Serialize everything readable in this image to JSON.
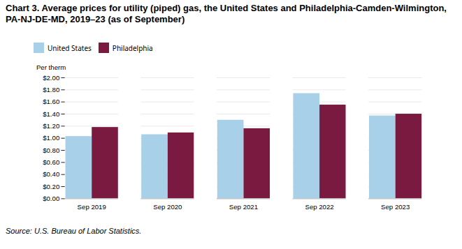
{
  "chart_data": {
    "type": "bar",
    "title": "Chart 3. Average prices for utility (piped) gas, the United States and Philadelphia-Camden-Wilmington, PA-NJ-DE-MD, 2019–23 (as of September)",
    "ylabel": "Per therm",
    "source": "Source: U.S. Bureau of Labor Statistics.",
    "categories": [
      "Sep 2019",
      "Sep 2020",
      "Sep 2021",
      "Sep 2022",
      "Sep 2023"
    ],
    "series": [
      {
        "name": "United States",
        "color": "#a8d0e8",
        "values": [
          1.03,
          1.06,
          1.3,
          1.74,
          1.37
        ]
      },
      {
        "name": "Philadelphia",
        "color": "#7b1a40",
        "values": [
          1.18,
          1.09,
          1.16,
          1.55,
          1.4
        ]
      }
    ],
    "ylim": [
      0,
      2.0
    ],
    "yticks": [
      {
        "value": 0.0,
        "label": "$0.00"
      },
      {
        "value": 0.2,
        "label": "$0.20"
      },
      {
        "value": 0.4,
        "label": "$0.40"
      },
      {
        "value": 0.6,
        "label": "$0.60"
      },
      {
        "value": 0.8,
        "label": "$0.80"
      },
      {
        "value": 1.0,
        "label": "$1.00"
      },
      {
        "value": 1.2,
        "label": "$1.20"
      },
      {
        "value": 1.4,
        "label": "$1.40"
      },
      {
        "value": 1.6,
        "label": "$1.60"
      },
      {
        "value": 1.8,
        "label": "$1.80"
      },
      {
        "value": 2.0,
        "label": "$2.00"
      }
    ],
    "grid": true,
    "legend": "top"
  }
}
